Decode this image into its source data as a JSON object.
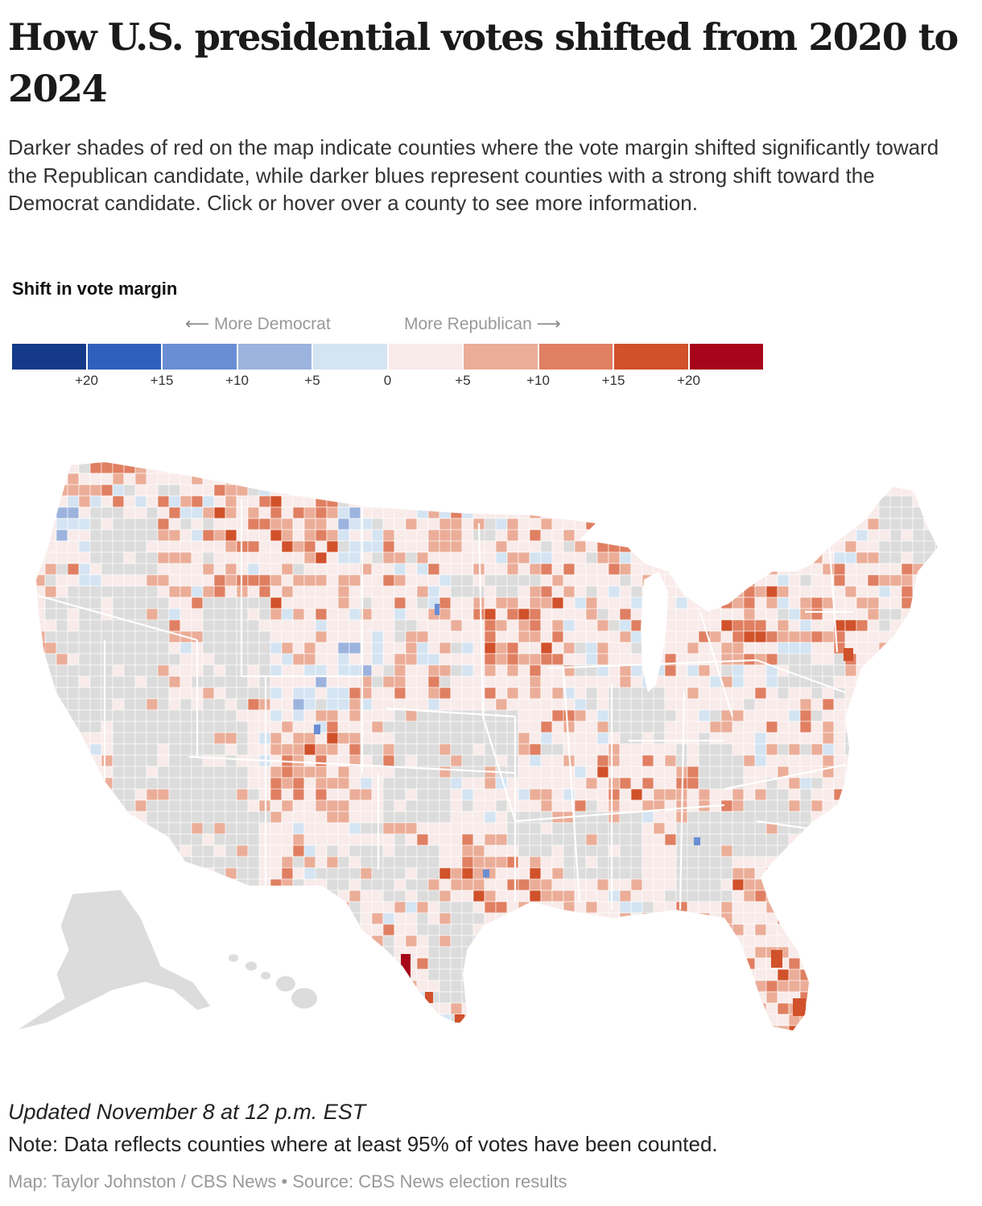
{
  "title": "How U.S. presidential votes shifted from 2020 to 2024",
  "subtitle": "Darker shades of red on the map indicate counties where the vote margin shifted significantly toward the Republican candidate, while darker blues represent counties with a strong shift toward the Democrat candidate. Click or hover over a county to see more information.",
  "legend": {
    "title": "Shift in vote margin",
    "left_label": "More Democrat",
    "right_label": "More Republican",
    "left_arrow": "⟵",
    "right_arrow": "⟶",
    "bins": [
      {
        "color": "#153a87"
      },
      {
        "color": "#2f60bd"
      },
      {
        "color": "#6a8ed3"
      },
      {
        "color": "#9cb3de"
      },
      {
        "color": "#d4e4f2"
      },
      {
        "color": "#f8ebea"
      },
      {
        "color": "#ebad98"
      },
      {
        "color": "#e07f62"
      },
      {
        "color": "#d1512a"
      },
      {
        "color": "#a6051a"
      }
    ],
    "ticks": [
      "+20",
      "+15",
      "+10",
      "+5",
      "0",
      "+5",
      "+10",
      "+15",
      "+20"
    ]
  },
  "map": {
    "no_data_color": "#dcdcdc",
    "border_color": "#ffffff"
  },
  "footer": {
    "updated": "Updated November 8 at 12 p.m. EST",
    "note": "Note: Data reflects counties where at least 95% of votes have been counted.",
    "credit": "Map: Taylor Johnston / CBS News • Source: CBS News election results"
  }
}
